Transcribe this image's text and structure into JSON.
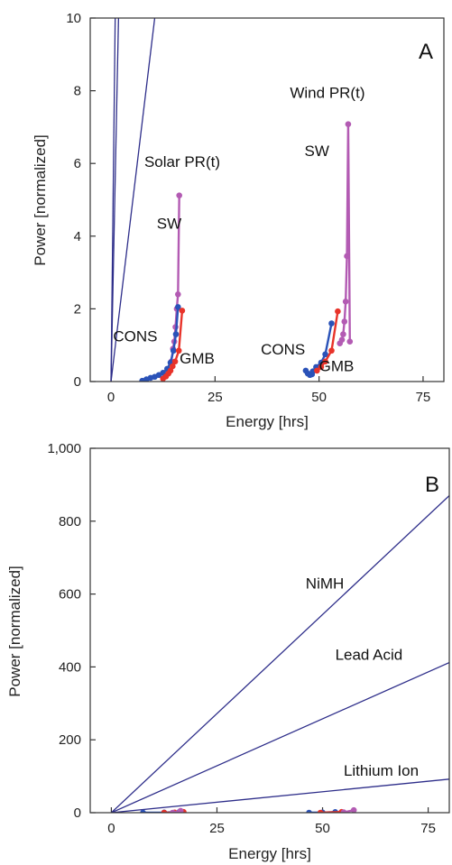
{
  "chart_data": [
    {
      "type": "line",
      "panel_label": "A",
      "xlabel": "Energy [hrs]",
      "ylabel": "Power [normalized]",
      "xlim": [
        -5,
        80
      ],
      "ylim": [
        0,
        10
      ],
      "xticks": [
        0,
        25,
        50,
        75
      ],
      "yticks": [
        0,
        2,
        4,
        6,
        8,
        10
      ],
      "colors": {
        "reference": "#2e2e8a",
        "sw": "#b35bb3",
        "cons": "#2a52b8",
        "gmb": "#e8332a"
      },
      "reference_lines": [
        {
          "x": [
            0,
            1.0
          ],
          "y": [
            0,
            10
          ]
        },
        {
          "x": [
            0,
            1.8
          ],
          "y": [
            0,
            10
          ]
        },
        {
          "x": [
            0,
            10.5
          ],
          "y": [
            0,
            10
          ]
        }
      ],
      "series": [
        {
          "key": "sw",
          "x": [
            14.5,
            14.9,
            15.2,
            15.5,
            15.8,
            16.1,
            16.4
          ],
          "y": [
            0.55,
            0.9,
            1.1,
            1.5,
            2.0,
            2.4,
            5.12
          ]
        },
        {
          "key": "cons",
          "x": [
            7.5,
            8.5,
            9.5,
            10.5,
            11.5,
            12.5,
            13.5,
            14.3,
            15.0,
            15.6,
            16.1
          ],
          "y": [
            0.02,
            0.06,
            0.1,
            0.13,
            0.18,
            0.24,
            0.35,
            0.52,
            0.85,
            1.3,
            2.05
          ]
        },
        {
          "key": "gmb",
          "x": [
            12.5,
            13.2,
            13.8,
            14.3,
            14.8,
            15.4,
            16.3,
            17.1
          ],
          "y": [
            0.08,
            0.14,
            0.22,
            0.3,
            0.42,
            0.55,
            0.85,
            1.95
          ]
        },
        {
          "key": "sw",
          "x": [
            55.0,
            55.5,
            55.8,
            56.1,
            56.4,
            56.7,
            57.0,
            57.4
          ],
          "y": [
            1.05,
            1.15,
            1.3,
            1.65,
            2.2,
            3.45,
            7.08,
            1.1
          ]
        },
        {
          "key": "cons",
          "x": [
            46.8,
            47.3,
            47.8,
            48.3,
            48.5,
            49.3,
            50.5,
            51.5,
            53.0
          ],
          "y": [
            0.3,
            0.22,
            0.18,
            0.2,
            0.28,
            0.4,
            0.52,
            0.75,
            1.6
          ]
        },
        {
          "key": "gmb",
          "x": [
            49.5,
            50.5,
            51.5,
            53.0,
            54.5
          ],
          "y": [
            0.3,
            0.4,
            0.55,
            0.85,
            1.93
          ]
        }
      ],
      "annotations": [
        {
          "text": "Solar PR(t)",
          "x": 8.0,
          "y": 5.9
        },
        {
          "text": "Wind PR(t)",
          "x": 43.0,
          "y": 7.8
        },
        {
          "text": "SW",
          "x": 11.0,
          "y": 4.2
        },
        {
          "text": "SW",
          "x": 46.5,
          "y": 6.2
        },
        {
          "text": "CONS",
          "x": 0.5,
          "y": 1.1
        },
        {
          "text": "GMB",
          "x": 16.5,
          "y": 0.5
        },
        {
          "text": "CONS",
          "x": 36.0,
          "y": 0.75
        },
        {
          "text": "GMB",
          "x": 50.0,
          "y": 0.28
        }
      ]
    },
    {
      "type": "line",
      "panel_label": "B",
      "xlabel": "Energy [hrs]",
      "ylabel": "Power [normalized]",
      "xlim": [
        -5,
        80
      ],
      "ylim": [
        0,
        1000
      ],
      "xticks": [
        0,
        25,
        50,
        75
      ],
      "yticks": [
        0,
        200,
        400,
        600,
        800,
        1000
      ],
      "yticklabels": [
        "0",
        "200",
        "400",
        "600",
        "800",
        "1,000"
      ],
      "colors": {
        "reference": "#2e2e8a",
        "sw": "#b35bb3",
        "cons": "#2a52b8",
        "gmb": "#e8332a"
      },
      "reference_lines": [
        {
          "name": "NiMH",
          "x": [
            0,
            80
          ],
          "y": [
            0,
            870
          ]
        },
        {
          "name": "Lead Acid",
          "x": [
            0,
            80
          ],
          "y": [
            0,
            412
          ]
        },
        {
          "name": "Lithium Ion",
          "x": [
            0,
            80
          ],
          "y": [
            0,
            92
          ]
        }
      ],
      "series": [
        {
          "key": "cons",
          "x": [
            7.5,
            12.5,
            16.1
          ],
          "y": [
            0,
            0.5,
            2
          ]
        },
        {
          "key": "gmb",
          "x": [
            12.5,
            15.0,
            17.1
          ],
          "y": [
            0,
            0.5,
            2
          ]
        },
        {
          "key": "sw",
          "x": [
            14.5,
            16.4
          ],
          "y": [
            0,
            5
          ]
        },
        {
          "key": "cons",
          "x": [
            46.8,
            50.0,
            53.0
          ],
          "y": [
            0,
            0.5,
            1.6
          ]
        },
        {
          "key": "gmb",
          "x": [
            49.5,
            54.5
          ],
          "y": [
            0,
            2
          ]
        },
        {
          "key": "sw",
          "x": [
            55.0,
            57.4
          ],
          "y": [
            1,
            7
          ]
        }
      ],
      "annotations": [
        {
          "text": "NiMH",
          "x": 46.0,
          "y": 615
        },
        {
          "text": "Lead Acid",
          "x": 53.0,
          "y": 420
        },
        {
          "text": "Lithium Ion",
          "x": 55.0,
          "y": 102
        }
      ]
    }
  ]
}
